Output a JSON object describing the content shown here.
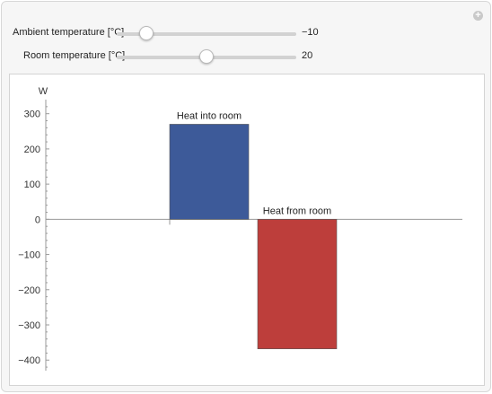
{
  "controls": {
    "ambient": {
      "label": "Ambient temperature [°C]",
      "value": "−10",
      "min": -20,
      "max": 40,
      "current": -10
    },
    "room": {
      "label": "Room temperature [°C]",
      "value": "20",
      "min": 0,
      "max": 40,
      "current": 20
    }
  },
  "chart_data": {
    "type": "bar",
    "categories": [
      "Heat into room",
      "Heat from room"
    ],
    "values": [
      270,
      -368
    ],
    "title": "",
    "xlabel": "",
    "ylabel": "W",
    "ylim": [
      -430,
      340
    ],
    "yticks": [
      300,
      200,
      100,
      0,
      -100,
      -200,
      -300,
      -400
    ],
    "ytick_labels": [
      "300",
      "200",
      "100",
      "0",
      "−100",
      "−200",
      "−300",
      "−400"
    ],
    "colors": [
      "#3d5a99",
      "#bd3e3b"
    ],
    "grid": false
  }
}
